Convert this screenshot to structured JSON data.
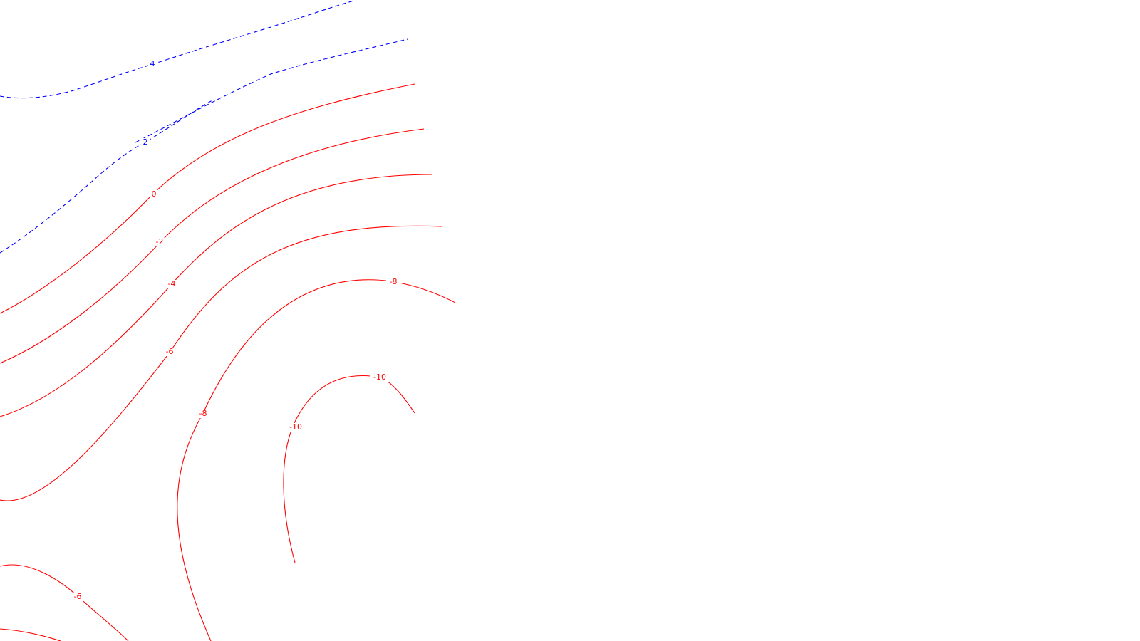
{
  "chart_data": {
    "type": "contour",
    "title": "",
    "xlabel": "",
    "ylabel": "",
    "grid": false,
    "legend": "none",
    "colors": {
      "positive": "#0000ff",
      "negative": "#ff0000",
      "background": "#ffffff"
    },
    "line_styles": {
      "positive": "dashed",
      "negative": "solid"
    },
    "levels": [
      {
        "value": 4,
        "label": "4",
        "sign": "positive"
      },
      {
        "value": 2,
        "label": "2",
        "sign": "positive"
      },
      {
        "value": 0,
        "label": "0",
        "sign": "negative"
      },
      {
        "value": -2,
        "label": "-2",
        "sign": "negative"
      },
      {
        "value": -4,
        "label": "-4",
        "sign": "negative"
      },
      {
        "value": -6,
        "label": "-6",
        "sign": "negative"
      },
      {
        "value": -8,
        "label": "-8",
        "sign": "negative"
      },
      {
        "value": -10,
        "label": "-10",
        "sign": "negative"
      },
      {
        "value": -6,
        "label": "-6",
        "sign": "negative"
      },
      {
        "value": -8,
        "label": "-8",
        "sign": "negative"
      }
    ]
  }
}
